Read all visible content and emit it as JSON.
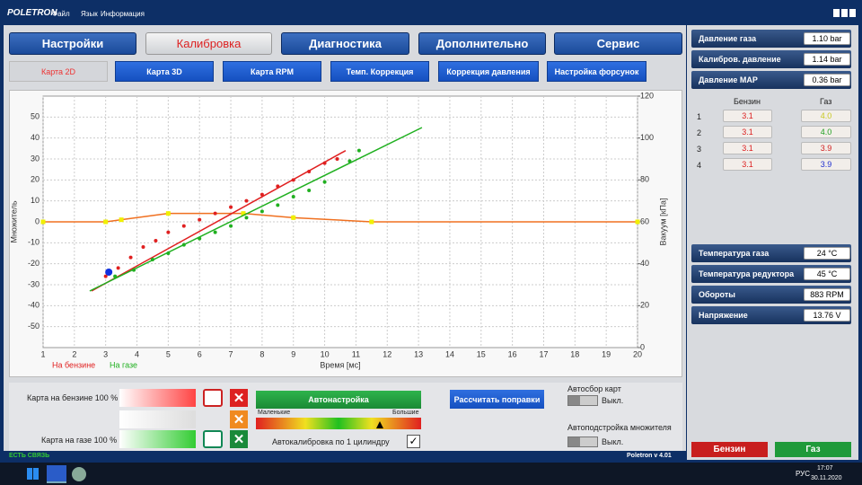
{
  "window": {
    "logo": "POLETRON",
    "menu": [
      "Файл",
      "Язык",
      "Информация"
    ]
  },
  "tabs": {
    "items": [
      "Настройки",
      "Калибровка",
      "Диагностика",
      "Дополнительно",
      "Сервис"
    ],
    "active": 1
  },
  "subtabs": {
    "items": [
      "Карта 2D",
      "Карта 3D",
      "Карта RPM",
      "Темп. Коррекция",
      "Коррекция давления",
      "Настройка форсунок"
    ],
    "active": 0
  },
  "chart": {
    "type": "scatter",
    "x_label": "Время [мс]",
    "y_label": "Множитель",
    "y2_label": "Вакуум [кПа]",
    "xlim": [
      1,
      20
    ],
    "xticks": [
      1,
      2,
      3,
      4,
      5,
      6,
      7,
      8,
      9,
      10,
      11,
      12,
      13,
      14,
      15,
      16,
      17,
      18,
      19,
      20
    ],
    "ylim": [
      -60,
      60
    ],
    "yticks": [
      -50,
      -40,
      -30,
      -20,
      -10,
      0,
      10,
      20,
      30,
      40,
      50
    ],
    "y2lim": [
      0,
      120
    ],
    "y2ticks": [
      0,
      20,
      40,
      60,
      80,
      100,
      120
    ],
    "grid": true,
    "series": [
      {
        "name": "На бензине",
        "color": "#e02020",
        "x": [
          3.0,
          3.4,
          3.8,
          4.2,
          4.6,
          5.0,
          5.5,
          6.0,
          6.5,
          7.0,
          7.5,
          8.0,
          8.5,
          9.0,
          9.5,
          10.0,
          10.4
        ],
        "values": [
          -26,
          -22,
          -17,
          -12,
          -9,
          -5,
          -2,
          1,
          4,
          7,
          10,
          13,
          17,
          20,
          24,
          28,
          30
        ]
      },
      {
        "name": "На газе",
        "color": "#20b020",
        "x": [
          3.3,
          3.9,
          4.5,
          5.0,
          5.5,
          6.0,
          6.5,
          7.0,
          7.5,
          8.0,
          8.5,
          9.0,
          9.5,
          10.0,
          10.8,
          11.1
        ],
        "values": [
          -26,
          -23,
          -18,
          -15,
          -11,
          -8,
          -5,
          -2,
          2,
          5,
          8,
          12,
          15,
          19,
          29,
          34
        ]
      }
    ],
    "fit_lines": [
      {
        "color": "#e02020",
        "x": [
          2.55,
          10.67
        ],
        "values": [
          -33,
          34
        ]
      },
      {
        "color": "#20b020",
        "x": [
          2.49,
          13.11
        ],
        "values": [
          -33,
          45
        ]
      }
    ],
    "vacuum_curve": {
      "color": "#f07020",
      "marker_color": "#f0f000",
      "x": [
        1,
        3,
        3.5,
        5,
        7.4,
        9,
        11.5,
        20
      ],
      "values": [
        0,
        0,
        1,
        4,
        4,
        2,
        0,
        0
      ]
    },
    "marker": {
      "color": "#1030e0",
      "x": 3.1,
      "value": -24
    }
  },
  "params_top": [
    {
      "label": "Давление газа",
      "value": "1.10 bar"
    },
    {
      "label": "Калибров. давление",
      "value": "1.14 bar"
    },
    {
      "label": "Давление MAP",
      "value": "0.36 bar"
    }
  ],
  "cylinders": {
    "headers": [
      "Бензин",
      "Газ"
    ],
    "rows": [
      {
        "n": "1",
        "petrol": "3.1",
        "gas": "4.0",
        "gas_color": "#c8c820"
      },
      {
        "n": "2",
        "petrol": "3.1",
        "gas": "4.0",
        "gas_color": "#20a020"
      },
      {
        "n": "3",
        "petrol": "3.1",
        "gas": "3.9",
        "gas_color": "#d02020"
      },
      {
        "n": "4",
        "petrol": "3.1",
        "gas": "3.9",
        "gas_color": "#2030d0"
      }
    ]
  },
  "params_bottom": [
    {
      "label": "Температура газа",
      "value": "24 °C"
    },
    {
      "label": "Температура редуктора",
      "value": "45 °C"
    },
    {
      "label": "Обороты",
      "value": "883 RPM"
    },
    {
      "label": "Напряжение",
      "value": "13.76 V"
    }
  ],
  "fuel_buttons": [
    "Бензин",
    "Газ"
  ],
  "controls": {
    "petrol_map": "Карта на бензине  100 %",
    "gas_map": "Карта на газе  100 %",
    "autotune": "Автонастройка",
    "small": "Маленькие",
    "large": "Большие",
    "autocal": "Автокалибровка по 1 цилиндру",
    "calc": "Рассчитать поправки",
    "autocollect": "Автосбор карт",
    "autocollect_state": "Выкл.",
    "autoadjust": "Автоподстройка  множителя",
    "autoadjust_state": "Выкл."
  },
  "status": {
    "link": "ЕСТЬ СВЯЗЬ",
    "version": "Poletron v 4.01"
  },
  "taskbar": {
    "lang": "РУС",
    "time": "17:07",
    "date": "30.11.2020"
  }
}
